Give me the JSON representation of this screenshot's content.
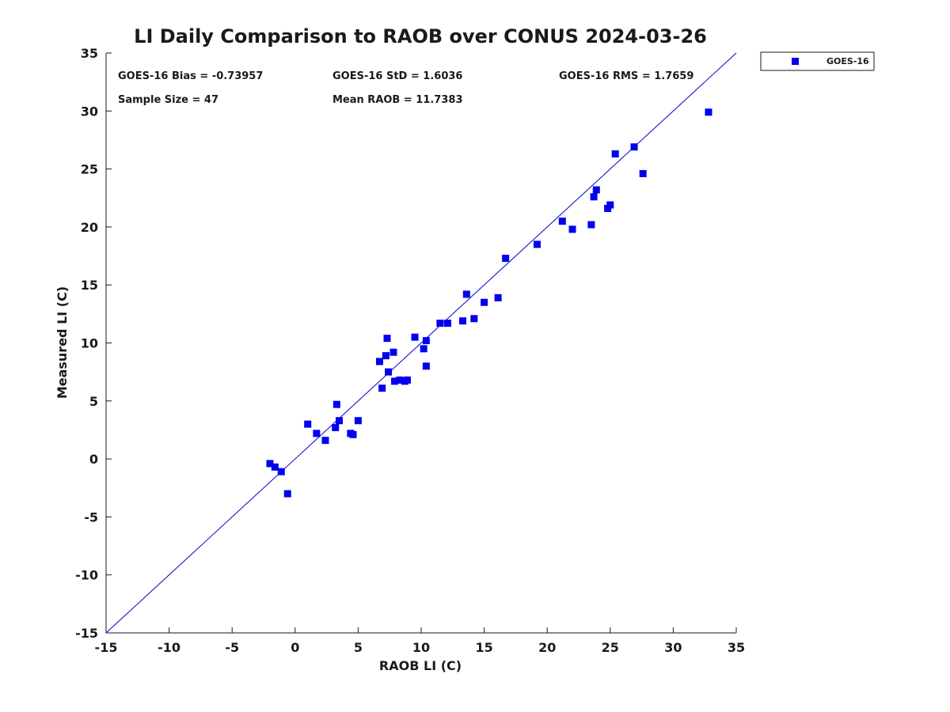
{
  "chart_data": {
    "type": "scatter",
    "title": "LI Daily Comparison to RAOB over CONUS 2024-03-26",
    "xlabel": "RAOB LI (C)",
    "ylabel": "Measured LI (C)",
    "xlim": [
      -15,
      35
    ],
    "ylim": [
      -15,
      35
    ],
    "xticks": [
      -15,
      -10,
      -5,
      0,
      5,
      10,
      15,
      20,
      25,
      30,
      35
    ],
    "yticks": [
      -15,
      -10,
      -5,
      0,
      5,
      10,
      15,
      20,
      25,
      30,
      35
    ],
    "grid": false,
    "legend_position": "outside-top-right",
    "reference_line": {
      "type": "one-to-one",
      "color": "#0000cc"
    },
    "stats": [
      "GOES-16 Bias = -0.73957",
      "GOES-16 StD = 1.6036",
      "GOES-16 RMS = 1.7659",
      "Sample Size = 47",
      "Mean RAOB = 11.7383"
    ],
    "series": [
      {
        "name": "GOES-16",
        "color": "#0000ee",
        "marker": "square",
        "points": [
          [
            -2.0,
            -0.4
          ],
          [
            -1.6,
            -0.7
          ],
          [
            -1.1,
            -1.1
          ],
          [
            -0.6,
            -3.0
          ],
          [
            1.0,
            3.0
          ],
          [
            1.7,
            2.2
          ],
          [
            2.4,
            1.6
          ],
          [
            3.2,
            2.7
          ],
          [
            3.3,
            4.7
          ],
          [
            3.5,
            3.3
          ],
          [
            4.4,
            2.2
          ],
          [
            4.6,
            2.1
          ],
          [
            5.0,
            3.3
          ],
          [
            6.7,
            8.4
          ],
          [
            6.9,
            6.1
          ],
          [
            7.2,
            8.9
          ],
          [
            7.3,
            10.4
          ],
          [
            7.4,
            7.5
          ],
          [
            7.8,
            9.2
          ],
          [
            7.9,
            6.7
          ],
          [
            8.3,
            6.8
          ],
          [
            8.7,
            6.7
          ],
          [
            8.9,
            6.8
          ],
          [
            9.5,
            10.5
          ],
          [
            10.2,
            9.5
          ],
          [
            10.4,
            10.2
          ],
          [
            10.4,
            8.0
          ],
          [
            11.5,
            11.7
          ],
          [
            12.1,
            11.7
          ],
          [
            13.3,
            11.9
          ],
          [
            13.6,
            14.2
          ],
          [
            14.2,
            12.1
          ],
          [
            15.0,
            13.5
          ],
          [
            16.1,
            13.9
          ],
          [
            16.7,
            17.3
          ],
          [
            19.2,
            18.5
          ],
          [
            21.2,
            20.5
          ],
          [
            22.0,
            19.8
          ],
          [
            23.5,
            20.2
          ],
          [
            23.7,
            22.6
          ],
          [
            23.9,
            23.2
          ],
          [
            24.8,
            21.6
          ],
          [
            25.0,
            21.9
          ],
          [
            25.4,
            26.3
          ],
          [
            26.9,
            26.9
          ],
          [
            27.6,
            24.6
          ],
          [
            32.8,
            29.9
          ]
        ]
      }
    ]
  }
}
